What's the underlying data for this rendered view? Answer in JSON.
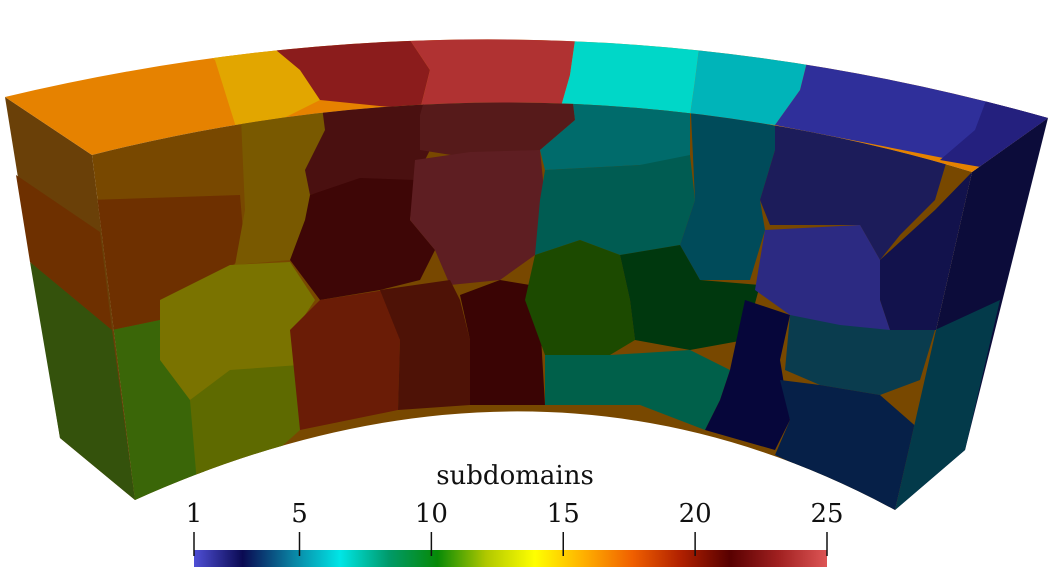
{
  "colorbar": {
    "title": "subdomains",
    "ticks": [
      {
        "value": 1,
        "label": "1"
      },
      {
        "value": 5,
        "label": "5"
      },
      {
        "value": 10,
        "label": "10"
      },
      {
        "value": 15,
        "label": "15"
      },
      {
        "value": 20,
        "label": "20"
      },
      {
        "value": 25,
        "label": "25"
      }
    ],
    "range": [
      1,
      25
    ],
    "colormap_stops": [
      "#4f4fd6",
      "#0a0a52",
      "#0a7fa0",
      "#00e6e6",
      "#009a6a",
      "#078a07",
      "#b0c800",
      "#ffff00",
      "#ffb000",
      "#f06000",
      "#b02000",
      "#580000",
      "#a02020",
      "#dd5555"
    ]
  },
  "colors": {
    "background": "#ffffff",
    "top_face": [
      "#e68200",
      "#e2a600",
      "#8b1c1c",
      "#b03232",
      "#00d7c8",
      "#00b4b9",
      "#2f2f9a",
      "#24207e"
    ],
    "outer_face": [
      "#784800",
      "#795900",
      "#4a1010",
      "#5a1a1a",
      "#006b6b",
      "#004b5a",
      "#1c1c5a",
      "#0f0f48"
    ],
    "side_face_left": "#6a4008",
    "side_face_right": "#0c0c3a"
  }
}
